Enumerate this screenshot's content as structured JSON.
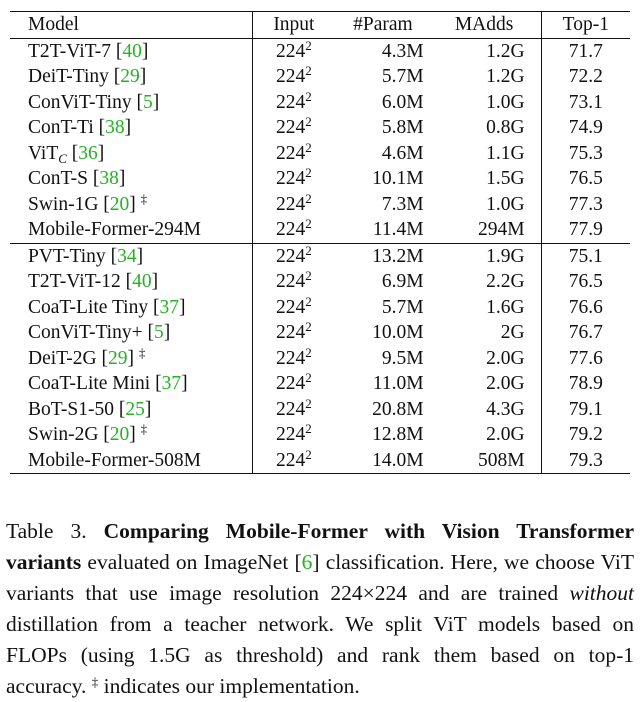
{
  "table": {
    "headers": {
      "model": "Model",
      "input": "Input",
      "param": "#Param",
      "madds": "MAdds",
      "top1": "Top-1"
    },
    "group_a": [
      {
        "name": "T2T-ViT-7",
        "sub": "",
        "cite": "40",
        "dagger": "",
        "input_base": "224",
        "input_exp": "2",
        "param": "4.3M",
        "madds": "1.2G",
        "top1": "71.7",
        "bold": false
      },
      {
        "name": "DeiT-Tiny",
        "sub": "",
        "cite": "29",
        "dagger": "",
        "input_base": "224",
        "input_exp": "2",
        "param": "5.7M",
        "madds": "1.2G",
        "top1": "72.2",
        "bold": false
      },
      {
        "name": "ConViT-Tiny",
        "sub": "",
        "cite": "5",
        "dagger": "",
        "input_base": "224",
        "input_exp": "2",
        "param": "6.0M",
        "madds": "1.0G",
        "top1": "73.1",
        "bold": false
      },
      {
        "name": "ConT-Ti",
        "sub": "",
        "cite": "38",
        "dagger": "",
        "input_base": "224",
        "input_exp": "2",
        "param": "5.8M",
        "madds": "0.8G",
        "top1": "74.9",
        "bold": false
      },
      {
        "name": "ViT",
        "sub": "C",
        "cite": "36",
        "dagger": "",
        "input_base": "224",
        "input_exp": "2",
        "param": "4.6M",
        "madds": "1.1G",
        "top1": "75.3",
        "bold": false
      },
      {
        "name": "ConT-S",
        "sub": "",
        "cite": "38",
        "dagger": "",
        "input_base": "224",
        "input_exp": "2",
        "param": "10.1M",
        "madds": "1.5G",
        "top1": "76.5",
        "bold": false
      },
      {
        "name": "Swin-1G",
        "sub": "",
        "cite": "20",
        "dagger": "‡",
        "input_base": "224",
        "input_exp": "2",
        "param": "7.3M",
        "madds": "1.0G",
        "top1": "77.3",
        "bold": false
      },
      {
        "name": "Mobile-Former-294M",
        "sub": "",
        "cite": "",
        "dagger": "",
        "input_base": "224",
        "input_exp": "2",
        "param": "11.4M",
        "madds": "294M",
        "top1": "77.9",
        "bold": true
      }
    ],
    "group_b": [
      {
        "name": "PVT-Tiny",
        "sub": "",
        "cite": "34",
        "dagger": "",
        "input_base": "224",
        "input_exp": "2",
        "param": "13.2M",
        "madds": "1.9G",
        "top1": "75.1",
        "bold": false
      },
      {
        "name": "T2T-ViT-12",
        "sub": "",
        "cite": "40",
        "dagger": "",
        "input_base": "224",
        "input_exp": "2",
        "param": "6.9M",
        "madds": "2.2G",
        "top1": "76.5",
        "bold": false
      },
      {
        "name": "CoaT-Lite Tiny",
        "sub": "",
        "cite": "37",
        "dagger": "",
        "input_base": "224",
        "input_exp": "2",
        "param": "5.7M",
        "madds": "1.6G",
        "top1": "76.6",
        "bold": false
      },
      {
        "name": "ConViT-Tiny+",
        "sub": "",
        "cite": "5",
        "dagger": "",
        "input_base": "224",
        "input_exp": "2",
        "param": "10.0M",
        "madds": "2G",
        "top1": "76.7",
        "bold": false
      },
      {
        "name": "DeiT-2G",
        "sub": "",
        "cite": "29",
        "dagger": "‡",
        "input_base": "224",
        "input_exp": "2",
        "param": "9.5M",
        "madds": "2.0G",
        "top1": "77.6",
        "bold": false
      },
      {
        "name": "CoaT-Lite Mini",
        "sub": "",
        "cite": "37",
        "dagger": "",
        "input_base": "224",
        "input_exp": "2",
        "param": "11.0M",
        "madds": "2.0G",
        "top1": "78.9",
        "bold": false
      },
      {
        "name": "BoT-S1-50",
        "sub": "",
        "cite": "25",
        "dagger": "",
        "input_base": "224",
        "input_exp": "2",
        "param": "20.8M",
        "madds": "4.3G",
        "top1": "79.1",
        "bold": false
      },
      {
        "name": "Swin-2G",
        "sub": "",
        "cite": "20",
        "dagger": "‡",
        "input_base": "224",
        "input_exp": "2",
        "param": "12.8M",
        "madds": "2.0G",
        "top1": "79.2",
        "bold": false
      },
      {
        "name": "Mobile-Former-508M",
        "sub": "",
        "cite": "",
        "dagger": "",
        "input_base": "224",
        "input_exp": "2",
        "param": "14.0M",
        "madds": "508M",
        "top1": "79.3",
        "bold": true
      }
    ]
  },
  "caption": {
    "label": "Table 3.",
    "title": "Comparing Mobile-Former with Vision Transformer variants",
    "text_1": " evaluated on ImageNet ",
    "cite": "6",
    "text_2": " classification.  Here, we choose ViT variants that use image resolution 224×224 and are trained ",
    "emph": "without",
    "text_3": " distillation from a teacher network. We split ViT models based on FLOPs (using 1.5G as threshold) and rank them based on top-1 accuracy. ",
    "dagger": "‡",
    "text_4": " indicates our implementation."
  }
}
